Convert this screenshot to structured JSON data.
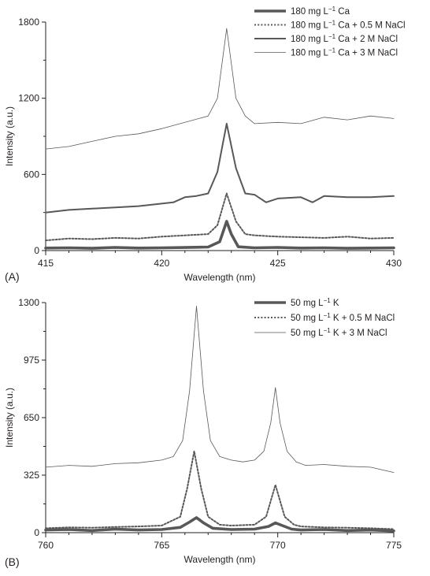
{
  "figure": {
    "panels": [
      {
        "panel_label": "(A)",
        "xlabel": "Wavelength (nm)",
        "ylabel": "Intensity (a.u.)",
        "legend": [
          {
            "pre": "180 mg L",
            "sup": "−1",
            "post": " Ca"
          },
          {
            "pre": "180 mg L",
            "sup": "−1",
            "post": " Ca + 0.5 M NaCl"
          },
          {
            "pre": "180 mg L",
            "sup": "−1",
            "post": " Ca + 2 M NaCl"
          },
          {
            "pre": "180 mg L",
            "sup": "−1",
            "post": " Ca + 3 M NaCl"
          }
        ]
      },
      {
        "panel_label": "(B)",
        "xlabel": "Wavelength (nm)",
        "ylabel": "Intensity (a.u.)",
        "legend": [
          {
            "pre": "50 mg L",
            "sup": "−1",
            "post": " K"
          },
          {
            "pre": "50 mg L",
            "sup": "−1",
            "post": " K + 0.5 M NaCl"
          },
          {
            "pre": "50 mg L",
            "sup": "−1",
            "post": " K + 3 M NaCl"
          }
        ]
      }
    ]
  },
  "chart_data": [
    {
      "type": "line",
      "title": "",
      "xlabel": "Wavelength (nm)",
      "ylabel": "Intensity (a.u.)",
      "xlim": [
        415,
        430
      ],
      "ylim": [
        0,
        1800
      ],
      "xticks": [
        415,
        420,
        425,
        430
      ],
      "yticks": [
        0,
        600,
        1200,
        1800
      ],
      "grid": false,
      "legend_position": "top-right",
      "series": [
        {
          "name": "180 mg L−1 Ca",
          "style": "thick",
          "color": "#58585a",
          "x": [
            415,
            416,
            417,
            418,
            419,
            420,
            421,
            422,
            422.5,
            422.8,
            423,
            423.3,
            424,
            425,
            426,
            427,
            428,
            429,
            430
          ],
          "y": [
            20,
            22,
            18,
            25,
            20,
            22,
            24,
            28,
            70,
            230,
            130,
            30,
            22,
            25,
            20,
            22,
            18,
            20,
            22
          ]
        },
        {
          "name": "180 mg L−1 Ca + 0.5 M NaCl",
          "style": "dotted",
          "color": "#58585a",
          "x": [
            415,
            416,
            417,
            418,
            419,
            420,
            421,
            422,
            422.4,
            422.8,
            423.2,
            423.6,
            424,
            425,
            426,
            427,
            428,
            429,
            430
          ],
          "y": [
            80,
            95,
            90,
            100,
            95,
            110,
            120,
            130,
            200,
            450,
            230,
            130,
            120,
            110,
            105,
            100,
            110,
            95,
            100
          ]
        },
        {
          "name": "180 mg L−1 Ca + 2 M NaCl",
          "style": "medium",
          "color": "#58585a",
          "x": [
            415,
            416,
            417,
            418,
            419,
            420,
            420.5,
            421,
            421.5,
            422,
            422.4,
            422.8,
            423.2,
            423.6,
            424,
            424.5,
            425,
            426,
            426.5,
            427,
            428,
            429,
            430
          ],
          "y": [
            300,
            320,
            330,
            340,
            350,
            370,
            380,
            420,
            430,
            450,
            620,
            1000,
            650,
            450,
            440,
            380,
            410,
            420,
            380,
            430,
            420,
            420,
            430
          ]
        },
        {
          "name": "180 mg L−1 Ca + 3 M NaCl",
          "style": "thin",
          "color": "#58585a",
          "x": [
            415,
            416,
            417,
            418,
            419,
            420,
            421,
            422,
            422.4,
            422.8,
            423.2,
            423.6,
            424,
            425,
            426,
            427,
            428,
            429,
            430
          ],
          "y": [
            800,
            820,
            860,
            900,
            920,
            960,
            1010,
            1060,
            1200,
            1750,
            1200,
            1060,
            1000,
            1010,
            1000,
            1050,
            1030,
            1060,
            1040
          ]
        }
      ]
    },
    {
      "type": "line",
      "title": "",
      "xlabel": "Wavelength (nm)",
      "ylabel": "Intensity (a.u.)",
      "xlim": [
        760,
        775
      ],
      "ylim": [
        0,
        1300
      ],
      "xticks": [
        760,
        765,
        770,
        775
      ],
      "yticks": [
        0,
        325,
        650,
        975,
        1300
      ],
      "grid": false,
      "legend_position": "top-right",
      "series": [
        {
          "name": "50 mg L−1 K",
          "style": "thick",
          "color": "#58585a",
          "x": [
            760,
            761,
            762,
            763,
            764,
            765,
            765.8,
            766.2,
            766.5,
            766.8,
            767.2,
            768,
            769,
            769.6,
            769.9,
            770.2,
            770.6,
            771,
            772,
            773,
            774,
            775
          ],
          "y": [
            15,
            18,
            12,
            20,
            15,
            18,
            30,
            60,
            85,
            55,
            25,
            18,
            20,
            35,
            55,
            40,
            20,
            15,
            18,
            12,
            15,
            10
          ]
        },
        {
          "name": "50 mg L−1 K + 0.5 M NaCl",
          "style": "dotted",
          "color": "#58585a",
          "x": [
            760,
            761,
            762,
            763,
            764,
            765,
            765.8,
            766.1,
            766.4,
            766.7,
            767,
            767.5,
            768,
            769,
            769.5,
            769.9,
            770.3,
            770.7,
            771,
            772,
            773,
            774,
            775
          ],
          "y": [
            25,
            30,
            28,
            32,
            35,
            40,
            90,
            250,
            460,
            250,
            90,
            45,
            40,
            45,
            90,
            270,
            90,
            45,
            35,
            30,
            28,
            25,
            20
          ]
        },
        {
          "name": "50 mg L−1 K + 3 M NaCl",
          "style": "thin",
          "color": "#58585a",
          "x": [
            760,
            761,
            762,
            763,
            764,
            765,
            765.5,
            765.9,
            766.2,
            766.5,
            766.8,
            767.1,
            767.5,
            768,
            768.5,
            769,
            769.4,
            769.7,
            769.9,
            770.1,
            770.4,
            770.8,
            771.2,
            772,
            773,
            774,
            775
          ],
          "y": [
            370,
            380,
            375,
            390,
            395,
            410,
            430,
            520,
            800,
            1280,
            800,
            520,
            430,
            410,
            400,
            410,
            460,
            620,
            820,
            620,
            460,
            400,
            380,
            385,
            375,
            370,
            340
          ]
        }
      ]
    }
  ]
}
